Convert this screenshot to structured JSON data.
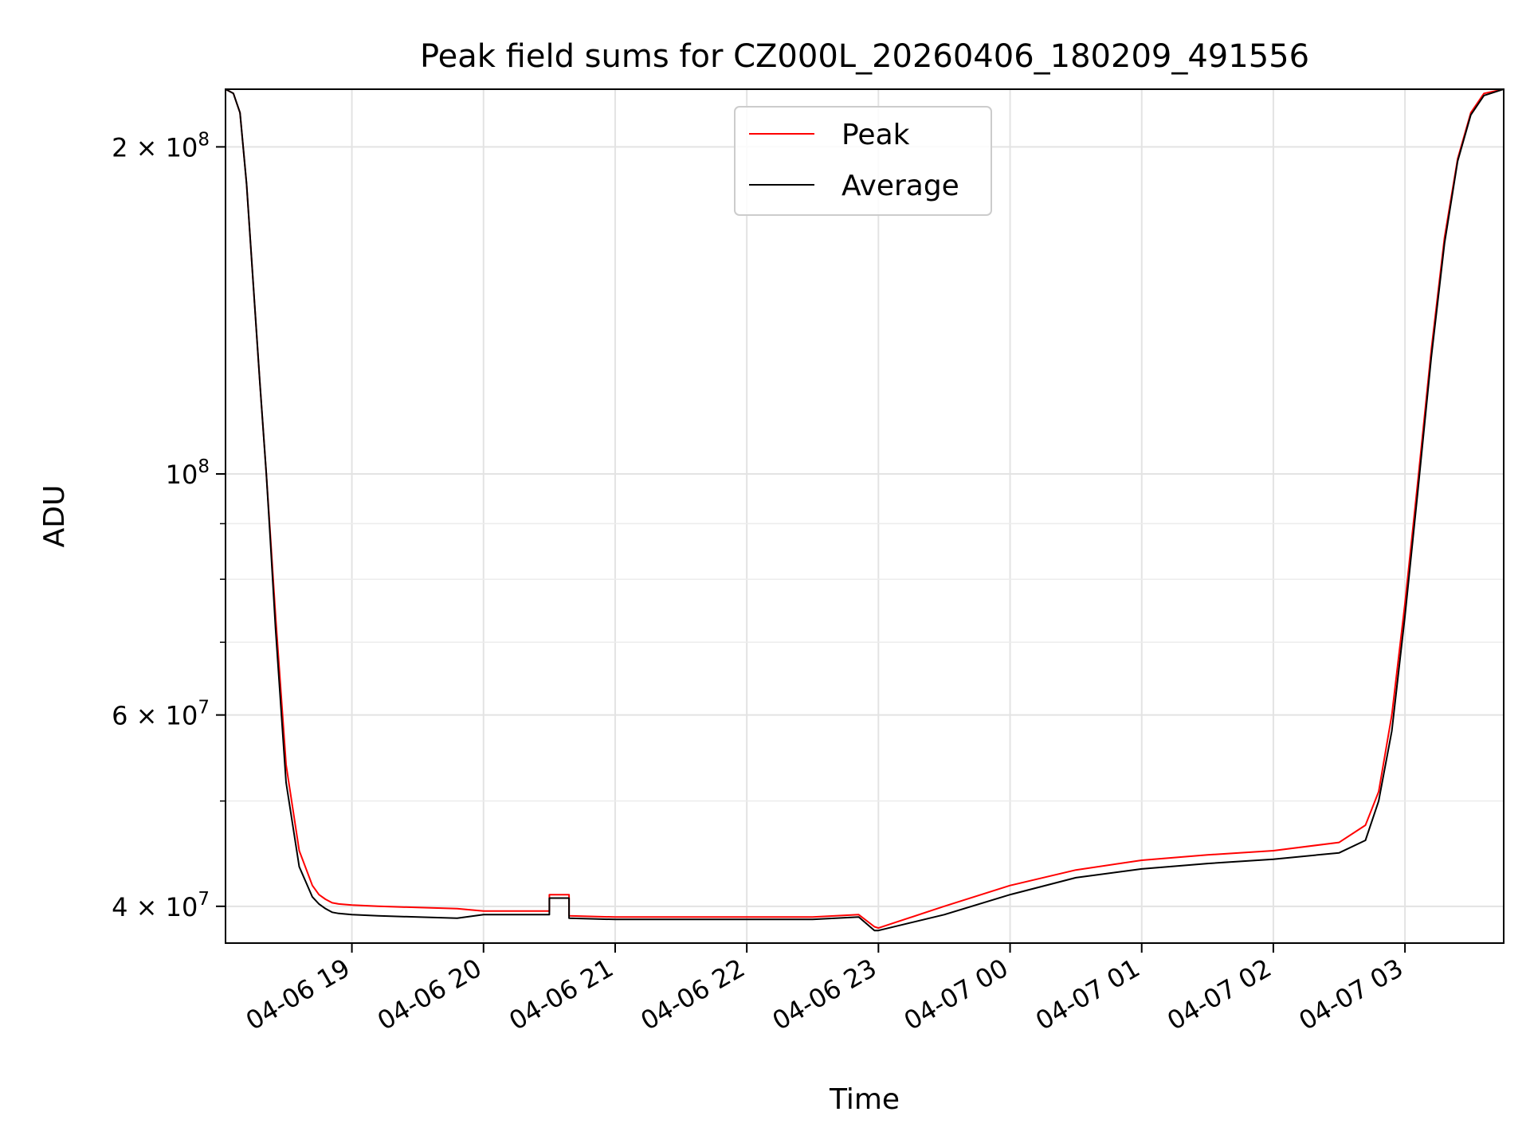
{
  "chart_data": {
    "type": "line",
    "title": "Peak field sums for CZ000L_20260406_180209_491556",
    "xlabel": "Time",
    "ylabel": "ADU",
    "yscale": "log",
    "xlim": [
      -0.96,
      8.75
    ],
    "ylim": [
      37000000,
      226000000
    ],
    "grid": true,
    "legend_position": "upper center",
    "x_unit": "hours after 04-06 19:00",
    "x_ticks": [
      {
        "value": 0,
        "label": "04-06 19"
      },
      {
        "value": 1,
        "label": "04-06 20"
      },
      {
        "value": 2,
        "label": "04-06 21"
      },
      {
        "value": 3,
        "label": "04-06 22"
      },
      {
        "value": 4,
        "label": "04-06 23"
      },
      {
        "value": 5,
        "label": "04-07 00"
      },
      {
        "value": 6,
        "label": "04-07 01"
      },
      {
        "value": 7,
        "label": "04-07 02"
      },
      {
        "value": 8,
        "label": "04-07 03"
      }
    ],
    "y_ticks": [
      {
        "value": 40000000,
        "base": "4 × 10",
        "exp": "7"
      },
      {
        "value": 60000000,
        "base": "6 × 10",
        "exp": "7"
      },
      {
        "value": 100000000,
        "base": "10",
        "exp": "8"
      },
      {
        "value": 200000000,
        "base": "2 × 10",
        "exp": "8"
      }
    ],
    "y_minor_ticks": [
      50000000,
      70000000,
      80000000,
      90000000
    ],
    "series": [
      {
        "name": "Peak",
        "color": "#ff0000",
        "x": [
          -0.96,
          -0.9,
          -0.85,
          -0.8,
          -0.75,
          -0.7,
          -0.65,
          -0.62,
          -0.58,
          -0.5,
          -0.4,
          -0.3,
          -0.25,
          -0.2,
          -0.15,
          -0.1,
          0.0,
          0.2,
          0.5,
          0.8,
          1.0,
          1.5,
          1.5,
          1.65,
          1.65,
          2.0,
          2.5,
          3.0,
          3.5,
          3.85,
          3.97,
          4.0,
          4.5,
          5.0,
          5.5,
          6.0,
          6.5,
          7.0,
          7.5,
          7.7,
          7.8,
          7.9,
          8.0,
          8.1,
          8.2,
          8.3,
          8.4,
          8.5,
          8.6,
          8.75
        ],
        "y": [
          226000000,
          224000000,
          215000000,
          185000000,
          150000000,
          122000000,
          100000000,
          88000000,
          74000000,
          54000000,
          45000000,
          41800000,
          41000000,
          40600000,
          40300000,
          40200000,
          40100000,
          40000000,
          39900000,
          39800000,
          39600000,
          39600000,
          41000000,
          41000000,
          39200000,
          39100000,
          39100000,
          39100000,
          39100000,
          39300000,
          38300000,
          38200000,
          40000000,
          41800000,
          43200000,
          44100000,
          44600000,
          45000000,
          45800000,
          47500000,
          51000000,
          60000000,
          76000000,
          99000000,
          130000000,
          165000000,
          195000000,
          215000000,
          224000000,
          226000000
        ]
      },
      {
        "name": "Average",
        "color": "#000000",
        "x": [
          -0.96,
          -0.9,
          -0.85,
          -0.8,
          -0.75,
          -0.7,
          -0.65,
          -0.62,
          -0.58,
          -0.5,
          -0.4,
          -0.3,
          -0.25,
          -0.2,
          -0.15,
          -0.1,
          0.0,
          0.2,
          0.5,
          0.8,
          1.0,
          1.5,
          1.5,
          1.65,
          1.65,
          2.0,
          2.5,
          3.0,
          3.5,
          3.85,
          3.97,
          4.0,
          4.5,
          5.0,
          5.5,
          6.0,
          6.5,
          7.0,
          7.5,
          7.7,
          7.8,
          7.9,
          8.0,
          8.1,
          8.2,
          8.3,
          8.4,
          8.5,
          8.6,
          8.75
        ],
        "y": [
          226000000,
          224000000,
          215000000,
          185000000,
          150000000,
          122000000,
          100000000,
          87000000,
          72000000,
          52000000,
          43500000,
          40800000,
          40200000,
          39800000,
          39500000,
          39400000,
          39300000,
          39200000,
          39100000,
          39000000,
          39300000,
          39300000,
          40700000,
          40700000,
          39000000,
          38900000,
          38900000,
          38900000,
          38900000,
          39100000,
          38000000,
          38000000,
          39300000,
          41000000,
          42500000,
          43300000,
          43800000,
          44200000,
          44800000,
          46000000,
          50000000,
          58000000,
          74000000,
          97000000,
          128000000,
          163000000,
          194000000,
          214000000,
          223000000,
          226000000
        ]
      }
    ]
  }
}
